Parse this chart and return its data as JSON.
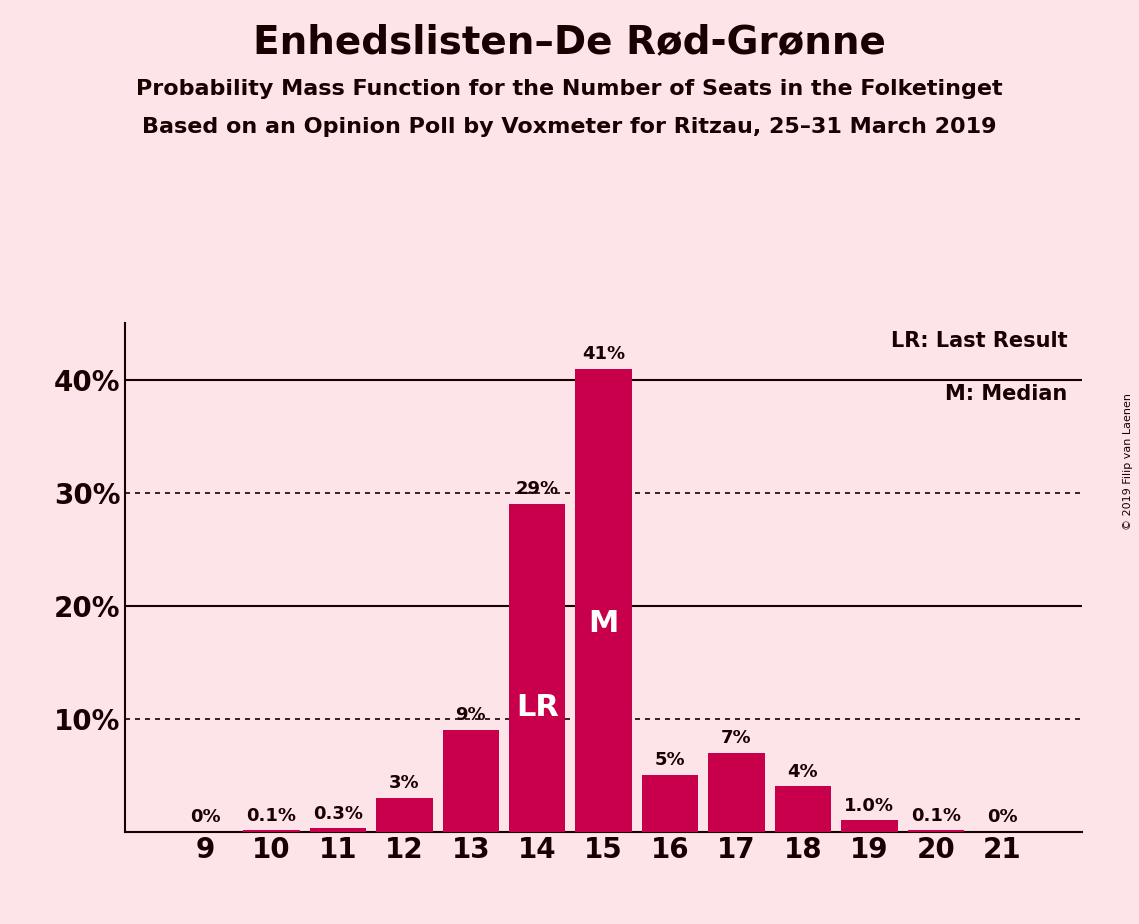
{
  "title": "Enhedslisten–De Rød-Grønne",
  "subtitle1": "Probability Mass Function for the Number of Seats in the Folketinget",
  "subtitle2": "Based on an Opinion Poll by Voxmeter for Ritzau, 25–31 March 2019",
  "copyright": "© 2019 Filip van Laenen",
  "seats": [
    9,
    10,
    11,
    12,
    13,
    14,
    15,
    16,
    17,
    18,
    19,
    20,
    21
  ],
  "probabilities": [
    0.0,
    0.1,
    0.3,
    3.0,
    9.0,
    29.0,
    41.0,
    5.0,
    7.0,
    4.0,
    1.0,
    0.1,
    0.0
  ],
  "bar_labels": [
    "0%",
    "0.1%",
    "0.3%",
    "3%",
    "9%",
    "29%",
    "41%",
    "5%",
    "7%",
    "4%",
    "1.0%",
    "0.1%",
    "0%"
  ],
  "bar_color": "#c8004b",
  "background_color": "#fce4e8",
  "text_color": "#1a0000",
  "lr_seat": 14,
  "median_seat": 15,
  "ylim": [
    0,
    45
  ],
  "yticks": [
    0,
    10,
    20,
    30,
    40
  ],
  "dotted_lines": [
    10,
    30
  ],
  "solid_lines": [
    20,
    40
  ],
  "legend_lr": "LR: Last Result",
  "legend_m": "M: Median",
  "title_fontsize": 28,
  "subtitle_fontsize": 16,
  "axis_fontsize": 20,
  "label_fontsize": 13,
  "inner_label_fontsize": 22
}
